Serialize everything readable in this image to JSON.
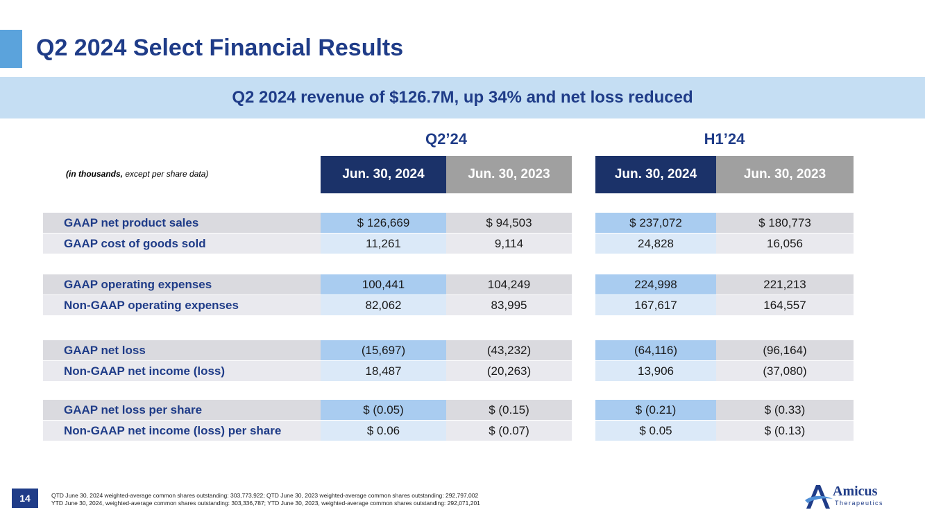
{
  "header": {
    "title": "Q2 2024 Select Financial Results",
    "banner": "Q2 2024 revenue of $126.7M, up 34% and net loss reduced"
  },
  "table": {
    "units_note_bold": "(in thousands,",
    "units_note_rest": " except per share data)",
    "groups": [
      "Q2’24",
      "H1’24"
    ],
    "columns": [
      "Jun. 30, 2024",
      "Jun. 30, 2023",
      "Jun. 30, 2024",
      "Jun. 30, 2023"
    ],
    "rows": [
      {
        "label": "GAAP net product sales",
        "values": [
          "$ 126,669",
          "$ 94,503",
          "$ 237,072",
          "$ 180,773"
        ]
      },
      {
        "label": "GAAP cost of goods sold",
        "values": [
          "11,261",
          "9,114",
          "24,828",
          "16,056"
        ]
      },
      {
        "label": "GAAP operating expenses",
        "values": [
          "100,441",
          "104,249",
          "224,998",
          "221,213"
        ]
      },
      {
        "label": "Non-GAAP operating expenses",
        "values": [
          "82,062",
          "83,995",
          "167,617",
          "164,557"
        ]
      },
      {
        "label": "GAAP net loss",
        "values": [
          "(15,697)",
          "(43,232)",
          "(64,116)",
          "(96,164)"
        ]
      },
      {
        "label": "Non-GAAP net income (loss)",
        "values": [
          "18,487",
          "(20,263)",
          "13,906",
          "(37,080)"
        ]
      },
      {
        "label": "GAAP net loss per share",
        "values": [
          "$ (0.05)",
          "$ (0.15)",
          "$ (0.21)",
          "$ (0.33)"
        ]
      },
      {
        "label": "Non-GAAP net income (loss) per share",
        "values": [
          "$ 0.06",
          "$ (0.07)",
          "$ 0.05",
          "$ (0.13)"
        ]
      }
    ]
  },
  "footer": {
    "page_number": "14",
    "footnotes": [
      "QTD June 30, 2024 weighted-average common shares outstanding: 303,773,922; QTD June 30, 2023 weighted-average common shares outstanding: 292,797,002",
      "YTD June 30, 2024, weighted-average common shares outstanding: 303,336,787; YTD June 30, 2023, weighted-average common shares outstanding: 292,071,201"
    ],
    "logo_name": "Amicus",
    "logo_sub": "Therapeutics"
  },
  "colors": {
    "title": "#1f3c88",
    "banner_bg": "#c5def3",
    "header_current": "#1b3269",
    "header_prior": "#a0a0a0"
  }
}
